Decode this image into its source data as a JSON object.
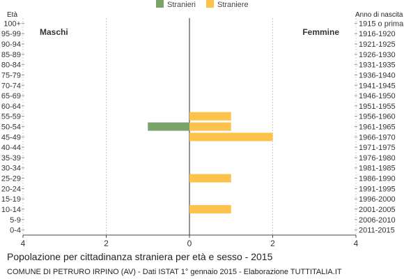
{
  "chart_data": {
    "type": "bar",
    "orientation": "horizontal",
    "title": "Popolazione per cittadinanza straniera per età e sesso - 2015",
    "source": "COMUNE DI PETRURO IRPINO (AV) - Dati ISTAT 1° gennaio 2015 - Elaborazione TUTTITALIA.IT",
    "left_axis_title": "Età",
    "right_axis_title": "Anno di nascita",
    "left_side_label": "Maschi",
    "right_side_label": "Femmine",
    "legend_position": "top-center",
    "xlim": [
      -4,
      4
    ],
    "x_ticks": [
      {
        "value": -4,
        "label": "4"
      },
      {
        "value": -2,
        "label": "2"
      },
      {
        "value": 0,
        "label": "0"
      },
      {
        "value": 2,
        "label": "2"
      },
      {
        "value": 4,
        "label": "4"
      }
    ],
    "age_groups": [
      "100+",
      "95-99",
      "90-94",
      "85-89",
      "80-84",
      "75-79",
      "70-74",
      "65-69",
      "60-64",
      "55-59",
      "50-54",
      "45-49",
      "40-44",
      "35-39",
      "30-34",
      "25-29",
      "20-24",
      "15-19",
      "10-14",
      "5-9",
      "0-4"
    ],
    "birth_years": [
      "1915 o prima",
      "1916-1920",
      "1921-1925",
      "1926-1930",
      "1931-1935",
      "1936-1940",
      "1941-1945",
      "1946-1950",
      "1951-1955",
      "1956-1960",
      "1961-1965",
      "1966-1970",
      "1971-1975",
      "1976-1980",
      "1981-1985",
      "1986-1990",
      "1991-1995",
      "1996-2000",
      "2001-2005",
      "2006-2010",
      "2011-2015"
    ],
    "series": [
      {
        "name": "Stranieri",
        "side": "left",
        "color": "#7aa36a",
        "values": [
          0,
          0,
          0,
          0,
          0,
          0,
          0,
          0,
          0,
          0,
          1,
          0,
          0,
          0,
          0,
          0,
          0,
          0,
          0,
          0,
          0
        ]
      },
      {
        "name": "Straniere",
        "side": "right",
        "color": "#fcc24c",
        "values": [
          0,
          0,
          0,
          0,
          0,
          0,
          0,
          0,
          0,
          1,
          1,
          2,
          0,
          0,
          0,
          1,
          0,
          0,
          1,
          0,
          0
        ]
      }
    ]
  }
}
